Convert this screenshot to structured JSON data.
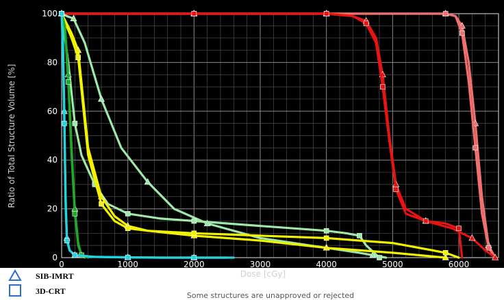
{
  "chart_data": {
    "type": "line",
    "xlabel": "Dose [cGy]",
    "ylabel": "Ratio of Total Structure Volume [%]",
    "xlim": [
      0,
      6600
    ],
    "ylim": [
      0,
      100
    ],
    "xticks": [
      0,
      1000,
      2000,
      3000,
      4000,
      5000,
      6000
    ],
    "yticks": [
      0,
      20,
      40,
      60,
      80,
      100
    ],
    "grid": true,
    "legend_position": "bottom-left",
    "legend": [
      {
        "label": "SIB-IMRT",
        "marker": "triangle"
      },
      {
        "label": "3D-CRT",
        "marker": "square"
      }
    ],
    "footer_note": "Some structures are unapproved or rejected",
    "series": [
      {
        "color": "#f07070",
        "marker": "triangle",
        "x": [
          0,
          1000,
          2000,
          3000,
          4000,
          5000,
          5800,
          5950,
          6050,
          6150,
          6250,
          6350,
          6450,
          6550
        ],
        "y": [
          100,
          100,
          100,
          100,
          100,
          100,
          100,
          99,
          95,
          80,
          55,
          25,
          5,
          0
        ]
      },
      {
        "color": "#f07070",
        "marker": "square",
        "x": [
          0,
          1000,
          2000,
          3000,
          4000,
          5000,
          5800,
          5950,
          6050,
          6150,
          6250,
          6350,
          6450,
          6550
        ],
        "y": [
          100,
          100,
          100,
          100,
          100,
          100,
          100,
          99,
          92,
          72,
          45,
          18,
          4,
          0
        ]
      },
      {
        "color": "#e81414",
        "marker": "triangle",
        "x": [
          0,
          1000,
          2000,
          3000,
          4000,
          4400,
          4600,
          4750,
          4850,
          4950,
          5050,
          5200,
          5500,
          5900,
          6200,
          6400,
          6550
        ],
        "y": [
          100,
          100,
          100,
          100,
          100,
          99,
          97,
          90,
          75,
          50,
          30,
          20,
          15,
          12,
          8,
          3,
          0
        ]
      },
      {
        "color": "#e81414",
        "marker": "square",
        "x": [
          0,
          1000,
          2000,
          3000,
          4000,
          4400,
          4600,
          4750,
          4850,
          4950,
          5050,
          5200,
          5500,
          5800,
          6000,
          6050
        ],
        "y": [
          100,
          100,
          100,
          100,
          100,
          99,
          96,
          88,
          70,
          48,
          28,
          18,
          15,
          14,
          12,
          0
        ]
      },
      {
        "color": "#9ee8a8",
        "marker": "triangle",
        "x": [
          0,
          80,
          180,
          350,
          600,
          900,
          1300,
          1700,
          2200,
          3000,
          4000,
          4500,
          4700,
          4900
        ],
        "y": [
          100,
          99,
          98,
          88,
          65,
          45,
          31,
          20,
          14,
          8,
          4,
          2,
          1,
          0
        ]
      },
      {
        "color": "#9ee8a8",
        "marker": "square",
        "x": [
          0,
          100,
          200,
          300,
          500,
          700,
          1000,
          1500,
          2000,
          3000,
          4000,
          4300,
          4500,
          4600,
          4800
        ],
        "y": [
          100,
          80,
          55,
          42,
          30,
          22,
          18,
          16,
          15,
          13,
          11,
          10,
          9,
          5,
          0
        ]
      },
      {
        "color": "#f2f200",
        "marker": "triangle",
        "x": [
          0,
          150,
          250,
          400,
          600,
          800,
          1000,
          1300,
          2000,
          3000,
          4000,
          5000,
          5800
        ],
        "y": [
          100,
          92,
          85,
          45,
          25,
          17,
          13,
          11,
          9,
          7,
          4,
          2,
          0
        ]
      },
      {
        "color": "#f2f200",
        "marker": "square",
        "x": [
          0,
          150,
          250,
          400,
          600,
          800,
          1000,
          1300,
          2000,
          3000,
          4000,
          5000,
          5800,
          6000
        ],
        "y": [
          100,
          90,
          82,
          42,
          22,
          15,
          12,
          11,
          10,
          9,
          8,
          6,
          2,
          0
        ]
      },
      {
        "color": "#1fa82a",
        "marker": "triangle",
        "x": [
          0,
          50,
          100,
          150,
          200,
          250,
          300,
          350
        ],
        "y": [
          100,
          95,
          75,
          45,
          20,
          6,
          1,
          0
        ]
      },
      {
        "color": "#1fa82a",
        "marker": "square",
        "x": [
          0,
          50,
          100,
          150,
          200,
          250,
          300,
          400
        ],
        "y": [
          100,
          94,
          72,
          42,
          18,
          5,
          1,
          0
        ]
      },
      {
        "color": "#22d4de",
        "marker": "triangle",
        "x": [
          0,
          20,
          40,
          60,
          80,
          120,
          200,
          500,
          1000,
          1500,
          2000,
          2500
        ],
        "y": [
          100,
          90,
          60,
          25,
          8,
          3,
          1,
          0.3,
          0.1,
          0,
          0,
          0
        ]
      },
      {
        "color": "#22d4de",
        "marker": "square",
        "x": [
          0,
          20,
          40,
          60,
          80,
          120,
          200,
          500,
          1000,
          1500,
          2000,
          2600
        ],
        "y": [
          100,
          85,
          55,
          22,
          7,
          3,
          1,
          0.3,
          0.1,
          0,
          0,
          0
        ]
      }
    ]
  }
}
